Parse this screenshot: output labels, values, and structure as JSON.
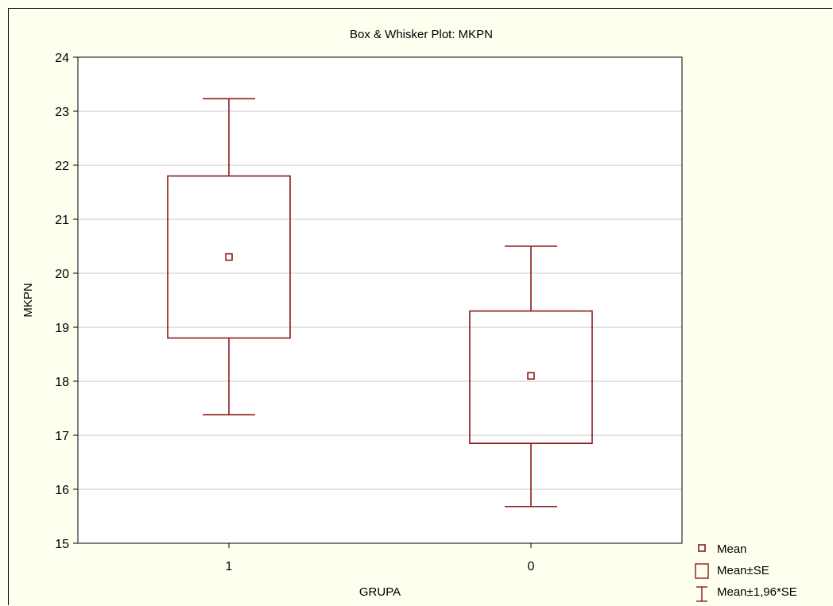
{
  "chart_data": {
    "type": "box",
    "title": "Box & Whisker Plot: MKPN",
    "xlabel": "GRUPA",
    "ylabel": "MKPN",
    "ylim": [
      15,
      24
    ],
    "yticks": [
      "15",
      "16",
      "17",
      "18",
      "19",
      "20",
      "21",
      "22",
      "23",
      "24"
    ],
    "grid": true,
    "categories": [
      "1",
      "0"
    ],
    "groups": [
      {
        "category": "1",
        "mean": 20.3,
        "se_low": 18.8,
        "se_high": 21.8,
        "ci_low": 17.38,
        "ci_high": 23.23
      },
      {
        "category": "0",
        "mean": 18.1,
        "se_low": 16.85,
        "se_high": 19.3,
        "ci_low": 15.68,
        "ci_high": 20.5
      }
    ],
    "legend": {
      "placement": "bottom-right",
      "items": [
        "Mean",
        "Mean±SE",
        "Mean±1,96*SE"
      ]
    },
    "colors": {
      "series": "#8b1a1a",
      "background": "#fffff0",
      "plot_background": "#ffffff",
      "grid": "#c8c8c8"
    }
  }
}
